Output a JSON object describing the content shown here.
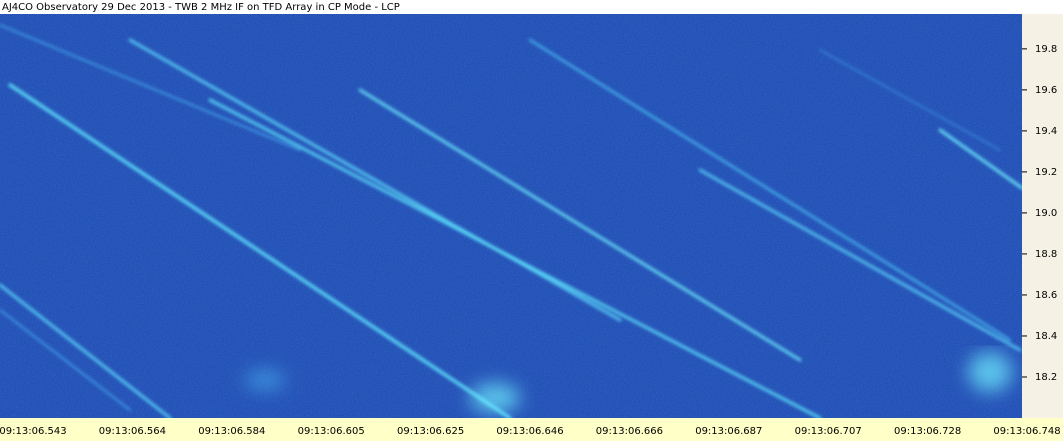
{
  "chart_data": {
    "type": "spectrogram",
    "title": "AJ4CO Observatory 29 Dec 2013 - TWB 2 MHz IF on TFD Array in CP Mode - LCP",
    "categories": [
      "09:13:06.543",
      "09:13:06.564",
      "09:13:06.584",
      "09:13:06.605",
      "09:13:06.625",
      "09:13:06.646",
      "09:13:06.666",
      "09:13:06.687",
      "09:13:06.707",
      "09:13:06.728",
      "09:13:06.748"
    ],
    "ylim": [
      18.0,
      19.97
    ],
    "yticks": [
      18.2,
      18.4,
      18.6,
      18.8,
      {
        "value": 19,
        "label": "19.0"
      },
      19.2,
      19.4,
      19.6,
      19.8
    ],
    "color": "#1c44b4"
  }
}
